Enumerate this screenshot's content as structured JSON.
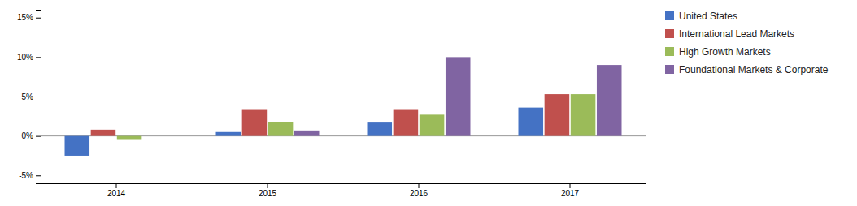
{
  "chart_data": {
    "type": "bar",
    "categories": [
      "2014",
      "2015",
      "2016",
      "2017"
    ],
    "series": [
      {
        "name": "United States",
        "color": "#4472C4",
        "values": [
          -2.5,
          0.5,
          1.7,
          3.6
        ]
      },
      {
        "name": "International Lead Markets",
        "color": "#C0504D",
        "values": [
          0.8,
          3.3,
          3.3,
          5.3
        ]
      },
      {
        "name": "High Growth Markets",
        "color": "#9BBB59",
        "values": [
          -0.5,
          1.8,
          2.7,
          5.3
        ]
      },
      {
        "name": "Foundational Markets & Corporate",
        "color": "#8064A2",
        "values": [
          0.0,
          0.7,
          10.0,
          9.0
        ]
      }
    ],
    "ylim": [
      -6,
      16
    ],
    "yticks": [
      {
        "value": -5,
        "label": "-5%"
      },
      {
        "value": 0,
        "label": "0%"
      },
      {
        "value": 5,
        "label": "5%"
      },
      {
        "value": 10,
        "label": "10%"
      },
      {
        "value": 15,
        "label": "15%"
      }
    ],
    "grid": false,
    "legend": "right"
  }
}
